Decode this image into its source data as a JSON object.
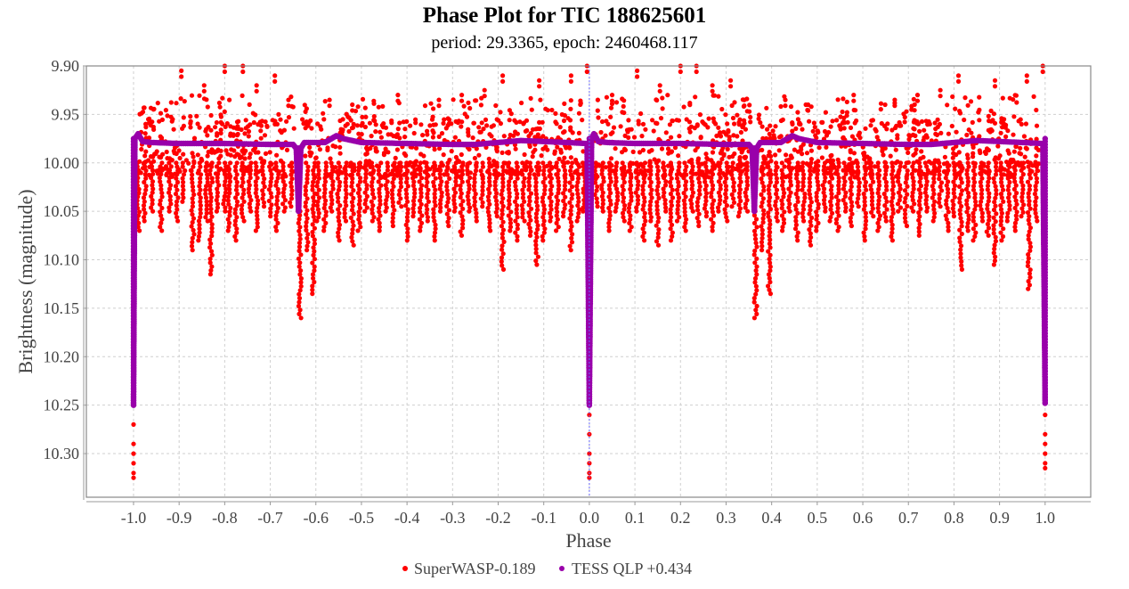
{
  "chart_data": {
    "type": "scatter",
    "title": "Phase Plot for TIC 188625601",
    "subtitle": "period: 29.3365, epoch: 2460468.117",
    "xlabel": "Phase",
    "ylabel": "Brightness (magnitude)",
    "xlim": [
      -1.1035,
      1.1
    ],
    "ylim": [
      10.345,
      9.9
    ],
    "y_inverted": true,
    "grid": true,
    "x_ticks": [
      "-1.0",
      "-0.9",
      "-0.8",
      "-0.7",
      "-0.6",
      "-0.5",
      "-0.4",
      "-0.3",
      "-0.2",
      "-0.1",
      "0.0",
      "0.1",
      "0.2",
      "0.3",
      "0.4",
      "0.5",
      "0.6",
      "0.7",
      "0.8",
      "0.9",
      "1.0"
    ],
    "x_tick_values": [
      -1.0,
      -0.9,
      -0.8,
      -0.7,
      -0.6,
      -0.5,
      -0.4,
      -0.3,
      -0.2,
      -0.1,
      0.0,
      0.1,
      0.2,
      0.3,
      0.4,
      0.5,
      0.6,
      0.7,
      0.8,
      0.9,
      1.0
    ],
    "y_ticks": [
      "9.90",
      "9.95",
      "10.00",
      "10.05",
      "10.10",
      "10.15",
      "10.20",
      "10.25",
      "10.30"
    ],
    "y_tick_values": [
      9.9,
      9.95,
      10.0,
      10.05,
      10.1,
      10.15,
      10.2,
      10.25,
      10.3
    ],
    "marker_line_phase": 0.0,
    "legend_position": "bottom-center",
    "legend": [
      "SuperWASP-0.189",
      "TESS QLP +0.434"
    ],
    "colors": {
      "superwasp": "#ff0000",
      "tess": "#9900aa",
      "marker_line": "#6b6bff"
    },
    "series": [
      {
        "name": "SuperWASP-0.189",
        "color": "#ff0000",
        "baseline_band": [
          9.955,
          10.015
        ],
        "eclipse_points": [
          [
            -1.0,
            10.25
          ],
          [
            -1.0,
            10.27
          ],
          [
            -1.0,
            10.29
          ],
          [
            -1.0,
            10.3
          ],
          [
            -1.0,
            10.31
          ],
          [
            -1.0,
            10.32
          ],
          [
            -1.0,
            10.325
          ],
          [
            0.0,
            10.26
          ],
          [
            0.0,
            10.28
          ],
          [
            0.0,
            10.3
          ],
          [
            0.0,
            10.31
          ],
          [
            0.0,
            10.32
          ],
          [
            0.0,
            10.325
          ],
          [
            1.0,
            10.26
          ],
          [
            1.0,
            10.28
          ],
          [
            1.0,
            10.29
          ],
          [
            1.0,
            10.3
          ],
          [
            1.0,
            10.31
          ],
          [
            1.0,
            10.315
          ]
        ],
        "streaks": [
          [
            -0.99,
            10.0,
            10.07
          ],
          [
            -0.975,
            10.0,
            10.06
          ],
          [
            -0.96,
            10.0,
            10.05
          ],
          [
            -0.94,
            10.0,
            10.07
          ],
          [
            -0.92,
            10.0,
            10.05
          ],
          [
            -0.905,
            10.0,
            10.06
          ],
          [
            -0.89,
            10.0,
            10.04
          ],
          [
            -0.87,
            10.0,
            10.09
          ],
          [
            -0.855,
            10.0,
            10.08
          ],
          [
            -0.84,
            10.0,
            10.06
          ],
          [
            -0.83,
            10.0,
            10.115
          ],
          [
            -0.815,
            10.0,
            10.05
          ],
          [
            -0.8,
            10.0,
            10.05
          ],
          [
            -0.79,
            10.0,
            10.07
          ],
          [
            -0.775,
            10.0,
            10.08
          ],
          [
            -0.76,
            10.0,
            10.06
          ],
          [
            -0.745,
            10.0,
            10.05
          ],
          [
            -0.73,
            10.0,
            10.07
          ],
          [
            -0.715,
            10.0,
            10.045
          ],
          [
            -0.7,
            10.0,
            10.055
          ],
          [
            -0.685,
            10.0,
            10.07
          ],
          [
            -0.67,
            10.0,
            10.05
          ],
          [
            -0.655,
            10.0,
            10.045
          ],
          [
            -0.635,
            10.05,
            10.16
          ],
          [
            -0.62,
            10.0,
            10.09
          ],
          [
            -0.605,
            10.0,
            10.135
          ],
          [
            -0.595,
            10.0,
            10.06
          ],
          [
            -0.58,
            10.0,
            10.07
          ],
          [
            -0.565,
            10.0,
            10.05
          ],
          [
            -0.55,
            10.0,
            10.08
          ],
          [
            -0.535,
            10.0,
            10.06
          ],
          [
            -0.52,
            10.0,
            10.085
          ],
          [
            -0.505,
            10.0,
            10.07
          ],
          [
            -0.49,
            10.0,
            10.05
          ],
          [
            -0.475,
            10.0,
            10.06
          ],
          [
            -0.46,
            10.0,
            10.07
          ],
          [
            -0.445,
            10.0,
            10.05
          ],
          [
            -0.43,
            10.0,
            10.065
          ],
          [
            -0.415,
            10.0,
            10.045
          ],
          [
            -0.4,
            10.0,
            10.08
          ],
          [
            -0.385,
            10.0,
            10.055
          ],
          [
            -0.37,
            10.0,
            10.07
          ],
          [
            -0.355,
            10.0,
            10.06
          ],
          [
            -0.34,
            10.0,
            10.08
          ],
          [
            -0.325,
            10.0,
            10.05
          ],
          [
            -0.31,
            10.0,
            10.065
          ],
          [
            -0.295,
            10.0,
            10.05
          ],
          [
            -0.28,
            10.0,
            10.075
          ],
          [
            -0.265,
            10.0,
            10.05
          ],
          [
            -0.25,
            10.0,
            10.06
          ],
          [
            -0.235,
            10.0,
            10.045
          ],
          [
            -0.22,
            10.0,
            10.07
          ],
          [
            -0.205,
            10.0,
            10.055
          ],
          [
            -0.19,
            10.0,
            10.11
          ],
          [
            -0.175,
            10.0,
            10.07
          ],
          [
            -0.16,
            10.0,
            10.08
          ],
          [
            -0.145,
            10.0,
            10.06
          ],
          [
            -0.13,
            10.0,
            10.075
          ],
          [
            -0.115,
            10.0,
            10.105
          ],
          [
            -0.1,
            10.0,
            10.08
          ],
          [
            -0.085,
            10.0,
            10.06
          ],
          [
            -0.07,
            10.0,
            10.07
          ],
          [
            -0.055,
            10.0,
            10.055
          ],
          [
            -0.04,
            10.0,
            10.09
          ],
          [
            -0.025,
            10.0,
            10.06
          ],
          [
            -0.012,
            10.0,
            10.05
          ],
          [
            0.015,
            10.0,
            10.045
          ],
          [
            0.03,
            10.0,
            10.05
          ],
          [
            0.045,
            10.0,
            10.07
          ],
          [
            0.06,
            10.0,
            10.05
          ],
          [
            0.075,
            10.0,
            10.06
          ],
          [
            0.09,
            10.0,
            10.07
          ],
          [
            0.105,
            10.0,
            10.05
          ],
          [
            0.12,
            10.0,
            10.08
          ],
          [
            0.135,
            10.0,
            10.06
          ],
          [
            0.15,
            10.0,
            10.085
          ],
          [
            0.165,
            10.0,
            10.05
          ],
          [
            0.18,
            10.0,
            10.08
          ],
          [
            0.195,
            10.0,
            10.06
          ],
          [
            0.21,
            10.0,
            10.07
          ],
          [
            0.225,
            10.0,
            10.05
          ],
          [
            0.24,
            10.0,
            10.065
          ],
          [
            0.255,
            10.0,
            10.055
          ],
          [
            0.27,
            10.0,
            10.07
          ],
          [
            0.285,
            10.0,
            10.05
          ],
          [
            0.3,
            10.0,
            10.06
          ],
          [
            0.315,
            10.0,
            10.045
          ],
          [
            0.33,
            10.0,
            10.055
          ],
          [
            0.345,
            10.0,
            10.05
          ],
          [
            0.365,
            10.05,
            10.16
          ],
          [
            0.38,
            10.0,
            10.09
          ],
          [
            0.395,
            10.0,
            10.135
          ],
          [
            0.41,
            10.0,
            10.06
          ],
          [
            0.425,
            10.0,
            10.07
          ],
          [
            0.44,
            10.0,
            10.05
          ],
          [
            0.455,
            10.0,
            10.08
          ],
          [
            0.47,
            10.0,
            10.06
          ],
          [
            0.485,
            10.0,
            10.085
          ],
          [
            0.5,
            10.0,
            10.07
          ],
          [
            0.515,
            10.0,
            10.05
          ],
          [
            0.53,
            10.0,
            10.06
          ],
          [
            0.545,
            10.0,
            10.07
          ],
          [
            0.56,
            10.0,
            10.05
          ],
          [
            0.575,
            10.0,
            10.065
          ],
          [
            0.59,
            10.0,
            10.045
          ],
          [
            0.605,
            10.0,
            10.08
          ],
          [
            0.62,
            10.0,
            10.055
          ],
          [
            0.635,
            10.0,
            10.07
          ],
          [
            0.65,
            10.0,
            10.06
          ],
          [
            0.665,
            10.0,
            10.08
          ],
          [
            0.68,
            10.0,
            10.05
          ],
          [
            0.695,
            10.0,
            10.065
          ],
          [
            0.71,
            10.0,
            10.05
          ],
          [
            0.725,
            10.0,
            10.075
          ],
          [
            0.74,
            10.0,
            10.05
          ],
          [
            0.755,
            10.0,
            10.06
          ],
          [
            0.77,
            10.0,
            10.045
          ],
          [
            0.785,
            10.0,
            10.07
          ],
          [
            0.8,
            10.0,
            10.055
          ],
          [
            0.815,
            10.0,
            10.11
          ],
          [
            0.83,
            10.0,
            10.07
          ],
          [
            0.845,
            10.0,
            10.08
          ],
          [
            0.86,
            10.0,
            10.06
          ],
          [
            0.875,
            10.0,
            10.075
          ],
          [
            0.89,
            10.0,
            10.105
          ],
          [
            0.905,
            10.0,
            10.08
          ],
          [
            0.92,
            10.0,
            10.06
          ],
          [
            0.935,
            10.0,
            10.07
          ],
          [
            0.95,
            10.0,
            10.055
          ],
          [
            0.965,
            10.0,
            10.13
          ],
          [
            0.98,
            10.0,
            10.06
          ]
        ],
        "upper_outliers": [
          [
            -0.895,
            9.905
          ],
          [
            -0.845,
            9.92
          ],
          [
            -0.8,
            9.9
          ],
          [
            -0.76,
            9.9
          ],
          [
            -0.73,
            9.92
          ],
          [
            -0.69,
            9.91
          ],
          [
            -0.66,
            9.935
          ],
          [
            -0.57,
            9.935
          ],
          [
            -0.52,
            9.94
          ],
          [
            -0.42,
            9.93
          ],
          [
            -0.33,
            9.935
          ],
          [
            -0.28,
            9.93
          ],
          [
            -0.23,
            9.925
          ],
          [
            -0.19,
            9.91
          ],
          [
            -0.11,
            9.915
          ],
          [
            -0.04,
            9.91
          ],
          [
            -0.005,
            9.9
          ],
          [
            0.05,
            9.93
          ],
          [
            0.105,
            9.905
          ],
          [
            0.155,
            9.92
          ],
          [
            0.2,
            9.9
          ],
          [
            0.235,
            9.9
          ],
          [
            0.27,
            9.92
          ],
          [
            0.31,
            9.915
          ],
          [
            0.34,
            9.935
          ],
          [
            0.43,
            9.935
          ],
          [
            0.48,
            9.94
          ],
          [
            0.58,
            9.93
          ],
          [
            0.67,
            9.935
          ],
          [
            0.72,
            9.93
          ],
          [
            0.77,
            9.925
          ],
          [
            0.81,
            9.91
          ],
          [
            0.89,
            9.915
          ],
          [
            0.96,
            9.91
          ],
          [
            0.995,
            9.9
          ]
        ]
      },
      {
        "name": "TESS QLP +0.434",
        "color": "#9900aa",
        "curve": [
          [
            -1.0,
            10.25
          ],
          [
            -0.997,
            9.975
          ],
          [
            -0.99,
            9.97
          ],
          [
            -0.98,
            9.978
          ],
          [
            -0.96,
            9.979
          ],
          [
            -0.9,
            9.98
          ],
          [
            -0.8,
            9.98
          ],
          [
            -0.7,
            9.981
          ],
          [
            -0.65,
            9.981
          ],
          [
            -0.643,
            9.985
          ],
          [
            -0.638,
            10.05
          ],
          [
            -0.633,
            9.985
          ],
          [
            -0.625,
            9.979
          ],
          [
            -0.58,
            9.979
          ],
          [
            -0.555,
            9.972
          ],
          [
            -0.54,
            9.975
          ],
          [
            -0.5,
            9.979
          ],
          [
            -0.4,
            9.98
          ],
          [
            -0.3,
            9.981
          ],
          [
            -0.25,
            9.981
          ],
          [
            -0.2,
            9.979
          ],
          [
            -0.15,
            9.977
          ],
          [
            -0.1,
            9.978
          ],
          [
            -0.05,
            9.979
          ],
          [
            -0.005,
            9.98
          ],
          [
            0.0,
            10.25
          ],
          [
            0.005,
            9.975
          ],
          [
            0.01,
            9.97
          ],
          [
            0.02,
            9.978
          ],
          [
            0.04,
            9.979
          ],
          [
            0.1,
            9.98
          ],
          [
            0.2,
            9.98
          ],
          [
            0.3,
            9.981
          ],
          [
            0.35,
            9.981
          ],
          [
            0.357,
            9.985
          ],
          [
            0.362,
            10.05
          ],
          [
            0.367,
            9.985
          ],
          [
            0.375,
            9.979
          ],
          [
            0.42,
            9.979
          ],
          [
            0.445,
            9.972
          ],
          [
            0.46,
            9.975
          ],
          [
            0.5,
            9.979
          ],
          [
            0.6,
            9.98
          ],
          [
            0.7,
            9.981
          ],
          [
            0.75,
            9.981
          ],
          [
            0.8,
            9.979
          ],
          [
            0.85,
            9.977
          ],
          [
            0.9,
            9.978
          ],
          [
            0.95,
            9.979
          ],
          [
            0.995,
            9.98
          ],
          [
            1.0,
            10.25
          ]
        ]
      }
    ]
  }
}
